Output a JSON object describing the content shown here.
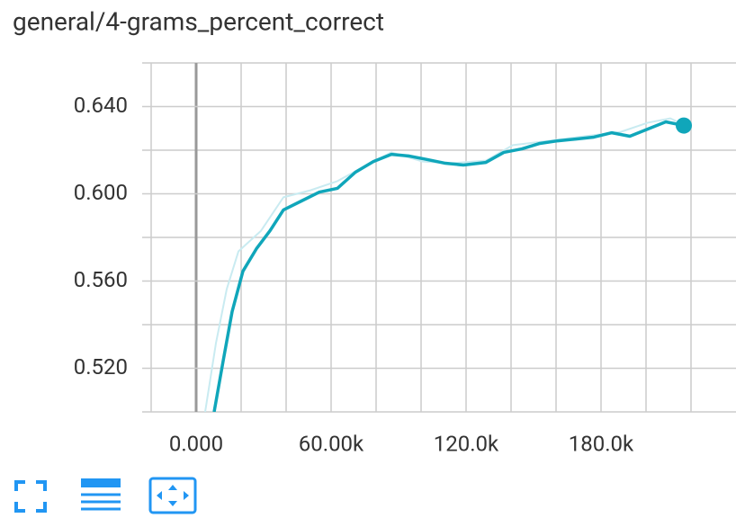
{
  "chart_data": {
    "type": "line",
    "title": "general/4-grams_percent_correct",
    "xlim": [
      -24000,
      240000
    ],
    "ylim": [
      0.5,
      0.66
    ],
    "xticks": [
      {
        "value": 0,
        "label": "0.000"
      },
      {
        "value": 60000,
        "label": "60.00k"
      },
      {
        "value": 120000,
        "label": "120.0k"
      },
      {
        "value": 180000,
        "label": "180.0k"
      }
    ],
    "yticks": [
      {
        "value": 0.52,
        "label": "0.520"
      },
      {
        "value": 0.56,
        "label": "0.560"
      },
      {
        "value": 0.6,
        "label": "0.600"
      },
      {
        "value": 0.64,
        "label": "0.640"
      }
    ],
    "x_minor_ticks": [
      -20000,
      20000,
      40000,
      80000,
      100000,
      140000,
      160000,
      200000,
      220000
    ],
    "y_minor_ticks": [
      0.5,
      0.54,
      0.58,
      0.62,
      0.66
    ],
    "grid": true,
    "series": [
      {
        "color": "#c9ebf1",
        "width": 2,
        "x": [
          4000,
          8800,
          13600,
          18800,
          28800,
          38800,
          50800,
          62800,
          72800,
          86800,
          100800,
          112800,
          128800,
          140800,
          156800,
          172800,
          188800,
          200800,
          210800,
          216800
        ],
        "values": [
          0.5,
          0.5315,
          0.5563,
          0.5736,
          0.583,
          0.5984,
          0.6016,
          0.6058,
          0.6115,
          0.619,
          0.6148,
          0.614,
          0.6152,
          0.6223,
          0.6243,
          0.6264,
          0.6284,
          0.6326,
          0.6346,
          0.6317
        ]
      },
      {
        "color": "#10a6ba",
        "width": 3.5,
        "end_marker": true,
        "x": [
          8000,
          12000,
          16000,
          20800,
          26800,
          32800,
          38800,
          46800,
          54800,
          62800,
          70800,
          78800,
          86800,
          94800,
          102800,
          110800,
          118800,
          128800,
          136800,
          144800,
          152800,
          160800,
          168800,
          176800,
          184800,
          192800,
          200800,
          208800,
          216800
        ],
        "values": [
          0.5,
          0.5233,
          0.546,
          0.5645,
          0.5748,
          0.583,
          0.5926,
          0.5967,
          0.6008,
          0.6025,
          0.6099,
          0.6148,
          0.6181,
          0.6173,
          0.6157,
          0.614,
          0.6132,
          0.6144,
          0.619,
          0.6206,
          0.6231,
          0.6243,
          0.6251,
          0.626,
          0.628,
          0.6264,
          0.6297,
          0.633,
          0.6313
        ]
      }
    ]
  }
}
